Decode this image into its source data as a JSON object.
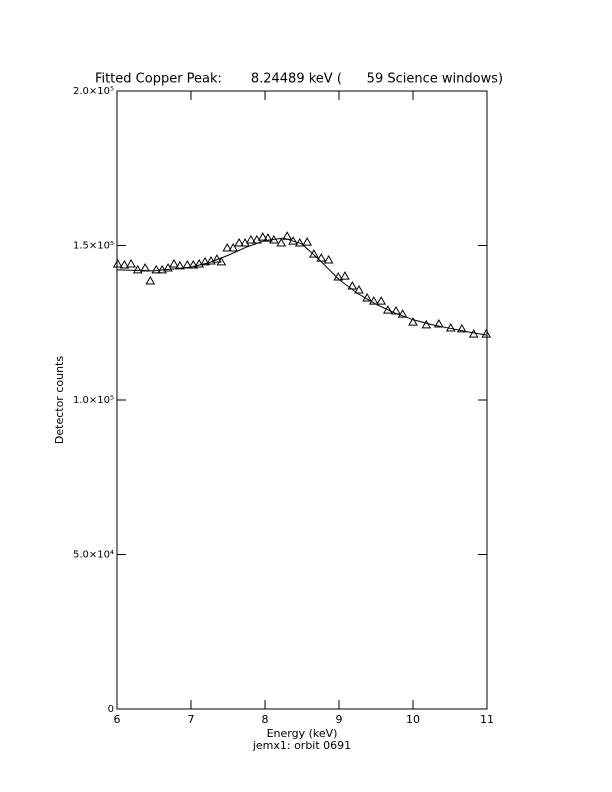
{
  "chart_data": {
    "type": "scatter",
    "title": "Fitted Copper Peak:       8.24489 keV (      59 Science windows)",
    "x_label": "Energy (keV)",
    "y_label": "Detector counts",
    "footer": "jemx1: orbit 0691",
    "xlim": [
      6,
      11
    ],
    "ylim": [
      0,
      200000
    ],
    "xticks": [
      6,
      7,
      8,
      9,
      10,
      11
    ],
    "yticks": [
      0,
      {
        "value": 50000,
        "label": "5.0×10⁴"
      },
      {
        "value": 100000,
        "label": "1.0×10⁵"
      },
      {
        "value": 150000,
        "label": "1.5×10⁵"
      },
      {
        "value": 200000,
        "label": "2.0×10⁵"
      }
    ],
    "series": [
      {
        "marker": "triangle",
        "color": "#000000",
        "x": [
          6.01,
          6.1,
          6.19,
          6.28,
          6.38,
          6.45,
          6.53,
          6.61,
          6.69,
          6.77,
          6.85,
          6.95,
          7.03,
          7.11,
          7.19,
          7.27,
          7.35,
          7.41,
          7.49,
          7.57,
          7.65,
          7.73,
          7.81,
          7.89,
          7.97,
          8.04,
          8.12,
          8.22,
          8.3,
          8.38,
          8.47,
          8.57,
          8.66,
          8.76,
          8.86,
          8.99,
          9.08,
          9.18,
          9.27,
          9.38,
          9.47,
          9.57,
          9.66,
          9.77,
          9.86,
          10.0,
          10.18,
          10.35,
          10.51,
          10.66,
          10.82,
          10.99
        ],
        "values": [
          144000,
          143700,
          144000,
          142100,
          142700,
          138500,
          142100,
          142100,
          142700,
          144000,
          143400,
          143700,
          143700,
          144000,
          144700,
          145000,
          145600,
          144700,
          149200,
          149200,
          150800,
          150800,
          151800,
          151800,
          152700,
          152400,
          151800,
          150800,
          153000,
          151400,
          150800,
          151100,
          147200,
          145900,
          145300,
          139800,
          140100,
          136900,
          135600,
          133000,
          132000,
          132000,
          129100,
          128800,
          127800,
          125200,
          124300,
          124600,
          123300,
          123000,
          121300,
          121300
        ]
      },
      {
        "marker": "line",
        "color": "#000000",
        "x": [
          6.0,
          6.5,
          7.0,
          7.25,
          7.5,
          7.75,
          8.0,
          8.25,
          8.5,
          8.75,
          9.0,
          9.25,
          9.5,
          9.75,
          10.0,
          10.25,
          10.5,
          10.75,
          11.0
        ],
        "values": [
          142100,
          141800,
          143000,
          144500,
          146800,
          149500,
          151600,
          152400,
          150500,
          145000,
          139000,
          134500,
          131000,
          128200,
          126000,
          124400,
          123200,
          122000,
          121000
        ]
      }
    ]
  }
}
